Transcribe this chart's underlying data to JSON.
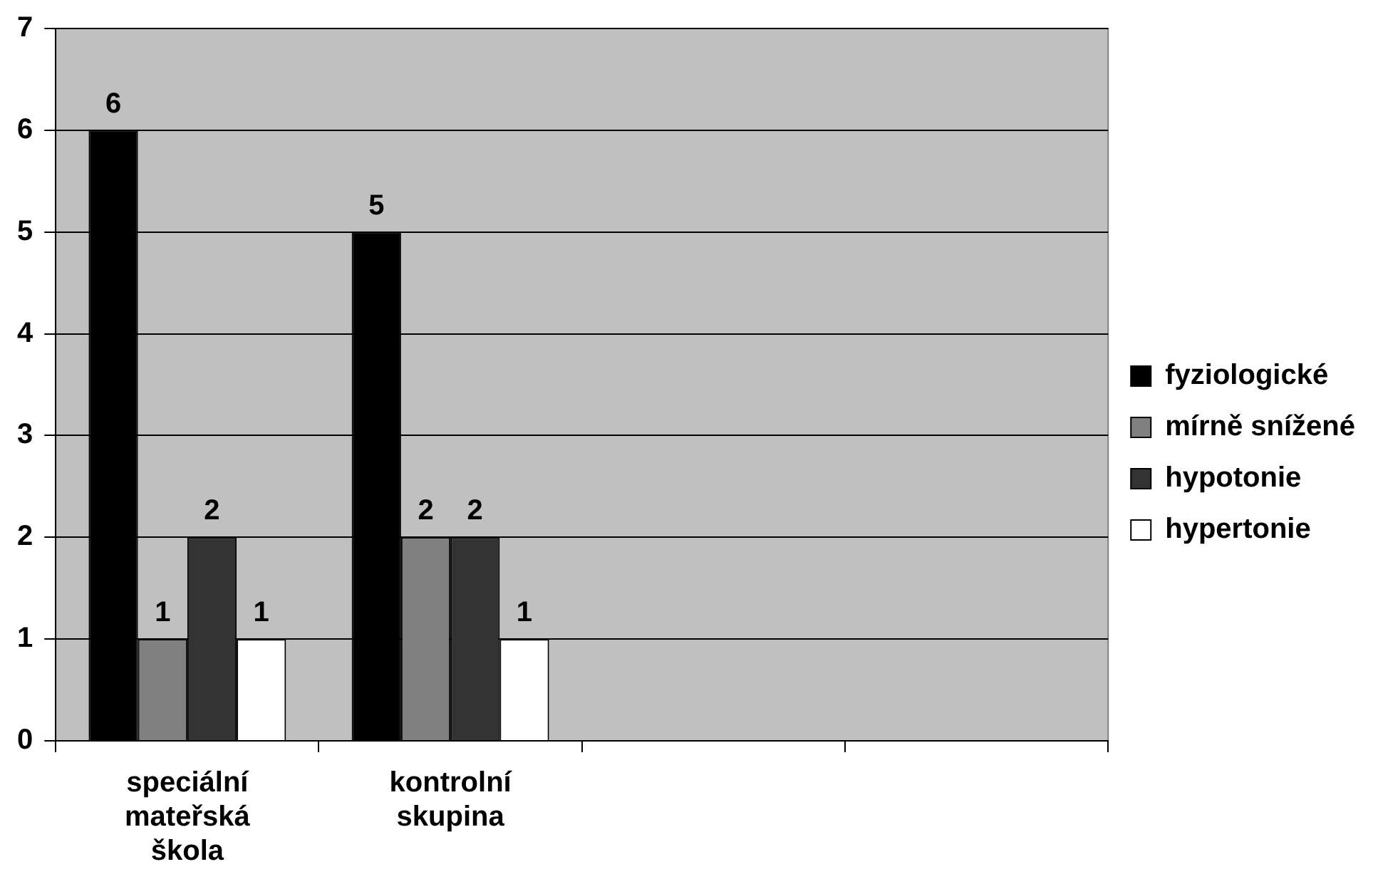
{
  "chart_data": {
    "type": "bar",
    "categories": [
      "speciální mateřská škola",
      "kontrolní skupina",
      null,
      null
    ],
    "series": [
      {
        "name": "fyziologické",
        "color": "#000000",
        "values": [
          6,
          5,
          null,
          null
        ]
      },
      {
        "name": "mírně snížené",
        "color": "#808080",
        "values": [
          1,
          2,
          null,
          null
        ]
      },
      {
        "name": "hypotonie",
        "color": "#333333",
        "values": [
          2,
          2,
          null,
          null
        ]
      },
      {
        "name": "hypertonie",
        "color": "#ffffff",
        "values": [
          1,
          1,
          null,
          null
        ]
      }
    ],
    "ylim": [
      0,
      7
    ],
    "yticks": [
      0,
      1,
      2,
      3,
      4,
      5,
      6,
      7
    ],
    "grid": "y",
    "legend": "right",
    "data_labels": true
  }
}
